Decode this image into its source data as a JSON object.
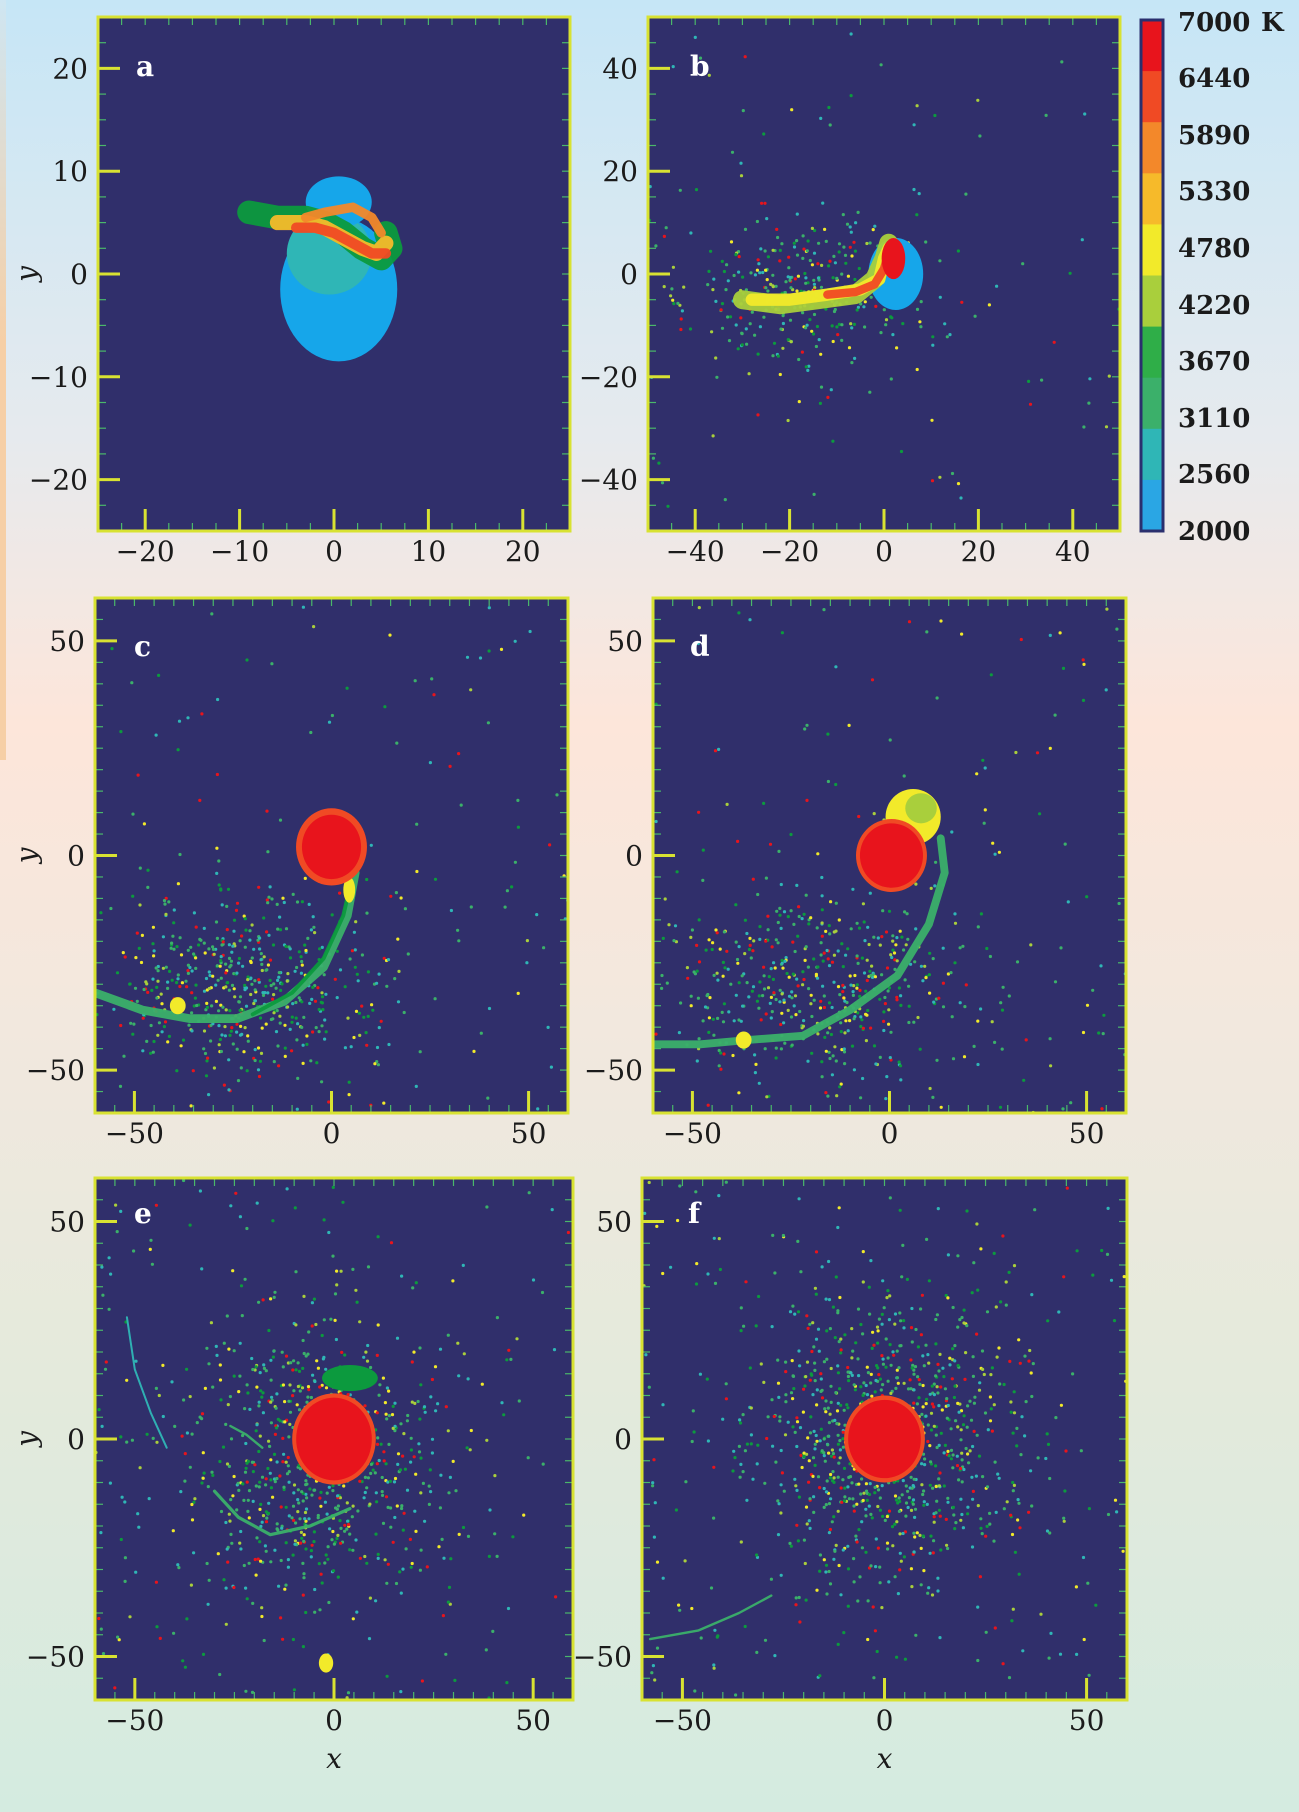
{
  "chart_data": [
    {
      "panel": "a",
      "type": "scatter",
      "xlim": [
        -25,
        25
      ],
      "ylim": [
        -25,
        25
      ],
      "xticks": [
        -20,
        -10,
        0,
        10,
        20
      ],
      "yticks": [
        -20,
        -10,
        0,
        10,
        20
      ],
      "xtick_labels": [
        "−20",
        "−10",
        "0",
        "10",
        "20"
      ],
      "ytick_labels": [
        "−20",
        "−10",
        "0",
        "10",
        "20"
      ],
      "xlabel": "",
      "ylabel": "y",
      "scatter_count": 0,
      "features": [
        {
          "shape": "ellipse",
          "cx": 0.5,
          "cy": -1.5,
          "rx": 6.2,
          "ry": 7.0,
          "temp": 2000
        },
        {
          "shape": "ellipse",
          "cx": -0.5,
          "cy": 2.0,
          "rx": 4.5,
          "ry": 4.0,
          "temp": 2560
        },
        {
          "shape": "ellipse",
          "cx": 0.5,
          "cy": 7.0,
          "rx": 3.5,
          "ry": 2.5,
          "temp": 2000
        },
        {
          "shape": "path",
          "points": [
            [
              -9,
              6
            ],
            [
              -6,
              5.5
            ],
            [
              -3,
              5.5
            ],
            [
              -1,
              5
            ],
            [
              1,
              4
            ],
            [
              3,
              2.5
            ],
            [
              5,
              1.5
            ],
            [
              6,
              2.5
            ],
            [
              5.5,
              4
            ]
          ],
          "width": 2.5,
          "temp": 3670
        },
        {
          "shape": "path",
          "points": [
            [
              -6,
              5
            ],
            [
              -3,
              5
            ],
            [
              -1,
              4.5
            ],
            [
              1,
              3.5
            ],
            [
              3,
              2.5
            ],
            [
              4.5,
              2
            ],
            [
              5.5,
              3
            ]
          ],
          "width": 1.6,
          "temp": 5330
        },
        {
          "shape": "path",
          "points": [
            [
              -4,
              4.5
            ],
            [
              -2,
              4.5
            ],
            [
              0,
              4
            ],
            [
              2,
              3
            ],
            [
              4,
              2
            ],
            [
              5.5,
              2
            ]
          ],
          "width": 1.1,
          "temp": 6440
        },
        {
          "shape": "path",
          "points": [
            [
              -3,
              5.5
            ],
            [
              -1,
              6
            ],
            [
              2,
              6.5
            ],
            [
              4,
              5.5
            ],
            [
              5,
              4
            ]
          ],
          "width": 1.0,
          "temp": 5890
        }
      ]
    },
    {
      "panel": "b",
      "type": "scatter",
      "xlim": [
        -50,
        50
      ],
      "ylim": [
        -50,
        50
      ],
      "xticks": [
        -40,
        -20,
        0,
        20,
        40
      ],
      "yticks": [
        -40,
        -20,
        0,
        20,
        40
      ],
      "xtick_labels": [
        "−40",
        "−20",
        "0",
        "20",
        "40"
      ],
      "ytick_labels": [
        "−40",
        "−20",
        "0",
        "20",
        "40"
      ],
      "xlabel": "",
      "ylabel": "",
      "scatter_count": 420,
      "scatter_spread": [
        14,
        7
      ],
      "scatter_center": [
        -16,
        -4
      ],
      "features": [
        {
          "shape": "ellipse",
          "cx": 2.5,
          "cy": 0.0,
          "rx": 5.8,
          "ry": 7.0,
          "temp": 2000
        },
        {
          "shape": "path",
          "points": [
            [
              -30,
              -5
            ],
            [
              -22,
              -6
            ],
            [
              -14,
              -5
            ],
            [
              -6,
              -4
            ],
            [
              -2,
              -1
            ],
            [
              0,
              3
            ],
            [
              1,
              6
            ]
          ],
          "width": 4.0,
          "temp": 4220
        },
        {
          "shape": "path",
          "points": [
            [
              -28,
              -5
            ],
            [
              -20,
              -5
            ],
            [
              -12,
              -4
            ],
            [
              -5,
              -3
            ],
            [
              -1,
              -1
            ],
            [
              0,
              3
            ],
            [
              1,
              5
            ]
          ],
          "width": 2.6,
          "temp": 4780
        },
        {
          "shape": "path",
          "points": [
            [
              -12,
              -4
            ],
            [
              -6,
              -3.5
            ],
            [
              -2,
              -2
            ],
            [
              0,
              1
            ],
            [
              1,
              4
            ],
            [
              2,
              6
            ]
          ],
          "width": 1.8,
          "temp": 6440
        },
        {
          "shape": "ellipse",
          "cx": 2.0,
          "cy": 3.0,
          "rx": 2.5,
          "ry": 4.0,
          "temp": 7000
        }
      ]
    },
    {
      "panel": "c",
      "type": "scatter",
      "xlim": [
        -60,
        60
      ],
      "ylim": [
        -60,
        60
      ],
      "xticks": [
        -50,
        0,
        50
      ],
      "yticks": [
        -50,
        0,
        50
      ],
      "xtick_labels": [
        "−50",
        "0",
        "50"
      ],
      "ytick_labels": [
        "−50",
        "0",
        "50"
      ],
      "xlabel": "",
      "ylabel": "y",
      "scatter_count": 640,
      "scatter_spread": [
        18,
        10
      ],
      "scatter_center": [
        -22,
        -30
      ],
      "features": [
        {
          "shape": "path",
          "points": [
            [
              -60,
              -32
            ],
            [
              -48,
              -36
            ],
            [
              -36,
              -38
            ],
            [
              -24,
              -38
            ],
            [
              -12,
              -34
            ],
            [
              -2,
              -26
            ],
            [
              4,
              -14
            ],
            [
              6,
              -4
            ]
          ],
          "width": 2.2,
          "temp": 3110
        },
        {
          "shape": "path",
          "points": [
            [
              -20,
              -37
            ],
            [
              -10,
              -32
            ],
            [
              -2,
              -24
            ],
            [
              3,
              -14
            ],
            [
              5,
              -6
            ]
          ],
          "width": 1.0,
          "temp": 3670
        },
        {
          "shape": "ellipse",
          "cx": 4.5,
          "cy": -8.0,
          "rx": 1.5,
          "ry": 3.0,
          "temp": 4780
        },
        {
          "shape": "ellipse",
          "cx": -39.0,
          "cy": -35.0,
          "rx": 2.0,
          "ry": 2.0,
          "temp": 4780
        },
        {
          "shape": "ellipse",
          "cx": 0.0,
          "cy": 2.0,
          "rx": 9.0,
          "ry": 9.0,
          "temp": 6440
        },
        {
          "shape": "ellipse",
          "cx": 0.0,
          "cy": 2.0,
          "rx": 7.5,
          "ry": 7.5,
          "temp": 7000
        }
      ]
    },
    {
      "panel": "d",
      "type": "scatter",
      "xlim": [
        -60,
        60
      ],
      "ylim": [
        -60,
        60
      ],
      "xticks": [
        -50,
        0,
        50
      ],
      "yticks": [
        -50,
        0,
        50
      ],
      "xtick_labels": [
        "−50",
        "0",
        "50"
      ],
      "ytick_labels": [
        "−50",
        "0",
        "50"
      ],
      "xlabel": "",
      "ylabel": "",
      "scatter_count": 620,
      "scatter_spread": [
        20,
        12
      ],
      "scatter_center": [
        -20,
        -30
      ],
      "features": [
        {
          "shape": "path",
          "points": [
            [
              -60,
              -44
            ],
            [
              -48,
              -44
            ],
            [
              -36,
              -43
            ],
            [
              -22,
              -42
            ],
            [
              -10,
              -36
            ],
            [
              2,
              -28
            ],
            [
              10,
              -16
            ],
            [
              14,
              -4
            ],
            [
              13,
              4
            ]
          ],
          "width": 2.0,
          "temp": 3110
        },
        {
          "shape": "ellipse",
          "cx": 6.0,
          "cy": 9.0,
          "rx": 7.0,
          "ry": 6.5,
          "temp": 4780
        },
        {
          "shape": "ellipse",
          "cx": 8.0,
          "cy": 11.0,
          "rx": 4.0,
          "ry": 3.5,
          "temp": 4220
        },
        {
          "shape": "ellipse",
          "cx": 0.5,
          "cy": 0.0,
          "rx": 9.0,
          "ry": 8.5,
          "temp": 6440
        },
        {
          "shape": "ellipse",
          "cx": 0.5,
          "cy": 0.0,
          "rx": 8.0,
          "ry": 7.5,
          "temp": 7000
        },
        {
          "shape": "ellipse",
          "cx": -37.0,
          "cy": -43.0,
          "rx": 2.0,
          "ry": 2.0,
          "temp": 4780
        }
      ]
    },
    {
      "panel": "e",
      "type": "scatter",
      "xlim": [
        -60,
        60
      ],
      "ylim": [
        -60,
        60
      ],
      "xticks": [
        -50,
        0,
        50
      ],
      "yticks": [
        -50,
        0,
        50
      ],
      "xtick_labels": [
        "−50",
        "0",
        "50"
      ],
      "ytick_labels": [
        "−50",
        "0",
        "50"
      ],
      "xlabel": "x",
      "ylabel": "y",
      "scatter_count": 900,
      "scatter_spread": [
        16,
        16
      ],
      "scatter_center": [
        -4,
        -4
      ],
      "features": [
        {
          "shape": "path",
          "points": [
            [
              -30,
              -12
            ],
            [
              -24,
              -18
            ],
            [
              -16,
              -22
            ],
            [
              -6,
              -20
            ],
            [
              4,
              -16
            ]
          ],
          "width": 0.8,
          "temp": 3110
        },
        {
          "shape": "path",
          "points": [
            [
              -52,
              28
            ],
            [
              -50,
              16
            ],
            [
              -46,
              6
            ],
            [
              -42,
              -2
            ]
          ],
          "width": 0.5,
          "temp": 2560
        },
        {
          "shape": "path",
          "points": [
            [
              -26,
              3
            ],
            [
              -22,
              1
            ],
            [
              -18,
              -2
            ]
          ],
          "width": 0.6,
          "temp": 3110
        },
        {
          "shape": "ellipse",
          "cx": 4.0,
          "cy": 14.0,
          "rx": 7.0,
          "ry": 3.0,
          "temp": 3670
        },
        {
          "shape": "ellipse",
          "cx": 0.0,
          "cy": 0.0,
          "rx": 10.5,
          "ry": 10.5,
          "temp": 6440
        },
        {
          "shape": "ellipse",
          "cx": 0.0,
          "cy": 0.0,
          "rx": 9.5,
          "ry": 9.5,
          "temp": 7000
        },
        {
          "shape": "ellipse",
          "cx": -2.0,
          "cy": -51.5,
          "rx": 1.8,
          "ry": 2.2,
          "temp": 4780
        }
      ]
    },
    {
      "panel": "f",
      "type": "scatter",
      "xlim": [
        -60,
        60
      ],
      "ylim": [
        -60,
        60
      ],
      "xticks": [
        -50,
        0,
        50
      ],
      "yticks": [
        -50,
        0,
        50
      ],
      "xtick_labels": [
        "−50",
        "0",
        "50"
      ],
      "ytick_labels": [
        "−50",
        "0",
        "50"
      ],
      "xlabel": "x",
      "ylabel": "",
      "scatter_count": 1100,
      "scatter_spread": [
        17,
        17
      ],
      "scatter_center": [
        0,
        0
      ],
      "features": [
        {
          "shape": "ellipse",
          "cx": 0.0,
          "cy": 0.0,
          "rx": 10.0,
          "ry": 10.0,
          "temp": 6440
        },
        {
          "shape": "ellipse",
          "cx": 0.0,
          "cy": 0.0,
          "rx": 9.0,
          "ry": 9.0,
          "temp": 7000
        },
        {
          "shape": "path",
          "points": [
            [
              -58,
              -46
            ],
            [
              -46,
              -44
            ],
            [
              -36,
              -40
            ],
            [
              -28,
              -36
            ]
          ],
          "width": 0.6,
          "temp": 3110
        }
      ]
    }
  ],
  "colorbar": {
    "unit": "K",
    "labels": [
      "7000",
      "6440",
      "5890",
      "5330",
      "4780",
      "4220",
      "3670",
      "3110",
      "2560",
      "2000"
    ],
    "colors": [
      "#e8141c",
      "#f04a24",
      "#f3882a",
      "#f6ba2a",
      "#f2ea2a",
      "#a9cf3c",
      "#2fae48",
      "#3bb06a",
      "#2fb6b6",
      "#2aa6e4"
    ],
    "bin_colors": [
      "#e8141c",
      "#f04a24",
      "#f3882a",
      "#f6ba2a",
      "#f2ea2a",
      "#a9cf3c",
      "#0c9a3e",
      "#3bb06a",
      "#2fb6b6",
      "#16a6ea"
    ]
  },
  "colors": {
    "plot_background": "#302f6b",
    "frame": "#d8e232",
    "tick": "#4ab86a",
    "major_tick": "#d8e232",
    "colorbar_frame": "#2a2f6e"
  }
}
